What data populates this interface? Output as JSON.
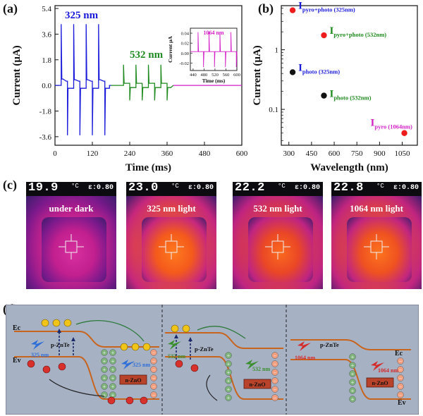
{
  "figure": {
    "panel_labels": [
      "(a)",
      "(b)",
      "(c)",
      "(d)"
    ]
  },
  "chart_data": [
    {
      "id": "a",
      "type": "line",
      "xlabel": "Time (ms)",
      "ylabel": "Current (μA)",
      "xlim": [
        0,
        600
      ],
      "ylim": [
        -4.2,
        5.6
      ],
      "x_ticks": [
        "0",
        "120",
        "240",
        "360",
        "480",
        "600"
      ],
      "x_tick_values": [
        0,
        120,
        240,
        360,
        480,
        600
      ],
      "y_ticks": [
        "5.4",
        "3.6",
        "1.8",
        "0.0",
        "-1.8",
        "-3.6"
      ],
      "y_tick_values": [
        5.4,
        3.6,
        1.8,
        0.0,
        -1.8,
        -3.6
      ],
      "series": [
        {
          "name": "325 nm",
          "color": "#1a1adb",
          "x": [
            0,
            20,
            20,
            22,
            24,
            26,
            26,
            36,
            40,
            40,
            42,
            44,
            46,
            46,
            60,
            60,
            62,
            64,
            66,
            66,
            76,
            80,
            80,
            82,
            84,
            86,
            86,
            100,
            100,
            102,
            104,
            106,
            106,
            116,
            120,
            120,
            122,
            124,
            126,
            126,
            140,
            140,
            142,
            144,
            146,
            146,
            156,
            160,
            160,
            162,
            164,
            166,
            166,
            175,
            175,
            180
          ],
          "y": [
            0.0,
            0.0,
            4.3,
            0.45,
            0.45,
            0.45,
            0.45,
            0.3,
            0.3,
            -3.5,
            -0.2,
            -0.2,
            -0.2,
            -0.2,
            -0.2,
            4.3,
            0.4,
            0.4,
            0.4,
            0.4,
            0.3,
            0.3,
            -3.5,
            -0.2,
            -0.2,
            -0.2,
            -0.2,
            -0.2,
            4.3,
            0.4,
            0.4,
            0.4,
            0.4,
            0.3,
            0.3,
            -3.5,
            -0.2,
            -0.2,
            -0.2,
            -0.2,
            -0.2,
            4.3,
            0.4,
            0.4,
            0.4,
            0.4,
            0.3,
            0.3,
            -3.5,
            -0.2,
            -0.2,
            -0.2,
            -0.2,
            -0.2,
            0.0,
            0.0
          ]
        },
        {
          "name": "532 nm",
          "color": "#1f8a1f",
          "x": [
            180,
            220,
            220,
            222,
            232,
            240,
            240,
            242,
            252,
            260,
            260,
            262,
            272,
            280,
            280,
            282,
            292,
            300,
            300,
            302,
            312,
            320,
            320,
            322,
            332,
            340,
            340,
            342,
            352,
            360,
            360,
            362,
            372,
            380
          ],
          "y": [
            0.0,
            0.0,
            1.45,
            0.15,
            0.15,
            0.15,
            -1.05,
            -0.15,
            -0.15,
            -0.15,
            1.45,
            0.15,
            0.15,
            0.15,
            -1.05,
            -0.15,
            -0.15,
            -0.15,
            1.45,
            0.15,
            0.15,
            0.15,
            -1.05,
            -0.15,
            -0.15,
            -0.15,
            1.45,
            0.15,
            0.15,
            0.15,
            -1.05,
            -0.15,
            -0.15,
            0.0
          ]
        },
        {
          "name": "1064 nm",
          "color": "#d41fc8",
          "x": [
            380,
            600
          ],
          "y": [
            0.0,
            0.0
          ]
        }
      ],
      "annotations": [
        {
          "text": "325 nm",
          "color": "#1a1adb"
        },
        {
          "text": "532 nm",
          "color": "#1f8a1f"
        }
      ],
      "inset": {
        "label": "1064 nm",
        "label_color": "#d41fc8",
        "xlabel": "Time (ms)",
        "ylabel": "Current μA",
        "xlim": [
          430,
          600
        ],
        "ylim": [
          -0.035,
          0.05
        ],
        "x_ticks": [
          "440",
          "480",
          "520",
          "560",
          "600"
        ],
        "x_tick_values": [
          440,
          480,
          520,
          560,
          600
        ],
        "y_ticks": [
          "0.04",
          "0.02",
          "0.00",
          "-0.02"
        ],
        "y_tick_values": [
          0.04,
          0.02,
          0.0,
          -0.02
        ],
        "x": [
          430,
          458,
          458,
          460,
          478,
          478,
          480,
          498,
          498,
          500,
          518,
          518,
          520,
          538,
          538,
          540,
          558,
          558,
          560,
          578,
          578,
          580,
          598,
          598,
          600
        ],
        "y": [
          0.003,
          0.003,
          0.042,
          0.003,
          0.003,
          -0.028,
          0.003,
          0.003,
          0.042,
          0.003,
          0.003,
          -0.028,
          0.003,
          0.003,
          0.042,
          0.003,
          0.003,
          -0.028,
          0.003,
          0.003,
          0.042,
          0.003,
          0.003,
          -0.028,
          0.003
        ]
      }
    },
    {
      "id": "b",
      "type": "scatter",
      "xlabel": "Wavelength (nm)",
      "ylabel": "Current (μA)",
      "yscale": "log",
      "xlim": [
        250,
        1150
      ],
      "ylim": [
        0.025,
        5.5
      ],
      "x_ticks": [
        "300",
        "450",
        "600",
        "750",
        "900",
        "1050"
      ],
      "x_tick_values": [
        300,
        450,
        600,
        750,
        900,
        1050
      ],
      "y_ticks": [
        "1",
        "0.1"
      ],
      "y_tick_values": [
        1,
        0.1
      ],
      "points": [
        {
          "x": 325,
          "y": 4.6,
          "color": "#ee1c1c",
          "label_main": "I",
          "label_sub": "pyro+photo (325nm)",
          "label_color": "#1a1adb"
        },
        {
          "x": 532,
          "y": 1.75,
          "color": "#ee1c1c",
          "label_main": "I",
          "label_sub": "pyro+photo (532nm)",
          "label_color": "#1f8a1f"
        },
        {
          "x": 325,
          "y": 0.42,
          "color": "#111111",
          "label_main": "I",
          "label_sub": "photo (325nm)",
          "label_color": "#1a1adb"
        },
        {
          "x": 532,
          "y": 0.17,
          "color": "#111111",
          "label_main": "I",
          "label_sub": "photo (532nm)",
          "label_color": "#1f8a1f"
        },
        {
          "x": 1064,
          "y": 0.04,
          "color": "#ee1c1c",
          "label_main": "I",
          "label_sub": "pyro (1064nm)",
          "label_color": "#d41fc8"
        }
      ]
    }
  ],
  "thermal_panels": [
    {
      "temp": "19.9",
      "unit": "°C",
      "emissivity": "ε:0.80",
      "label": "under dark"
    },
    {
      "temp": "23.0",
      "unit": "°C",
      "emissivity": "ε:0.80",
      "label": "325 nm light"
    },
    {
      "temp": "22.2",
      "unit": "°C",
      "emissivity": "ε:0.80",
      "label": "532 nm light"
    },
    {
      "temp": "22.8",
      "unit": "°C",
      "emissivity": "ε:0.80",
      "label": "1064 nm light"
    }
  ],
  "band_diagram": {
    "ec": "Ec",
    "ev": "Ev",
    "p_label": "p-ZnTe",
    "n_label": "n-ZnO",
    "sections": [
      {
        "wavelength": "325 nm",
        "color": "#2f6fd8"
      },
      {
        "wavelength": "532 nm",
        "color": "#3c8f2f"
      },
      {
        "wavelength": "1064 nm",
        "color": "#d42a2a"
      }
    ]
  }
}
